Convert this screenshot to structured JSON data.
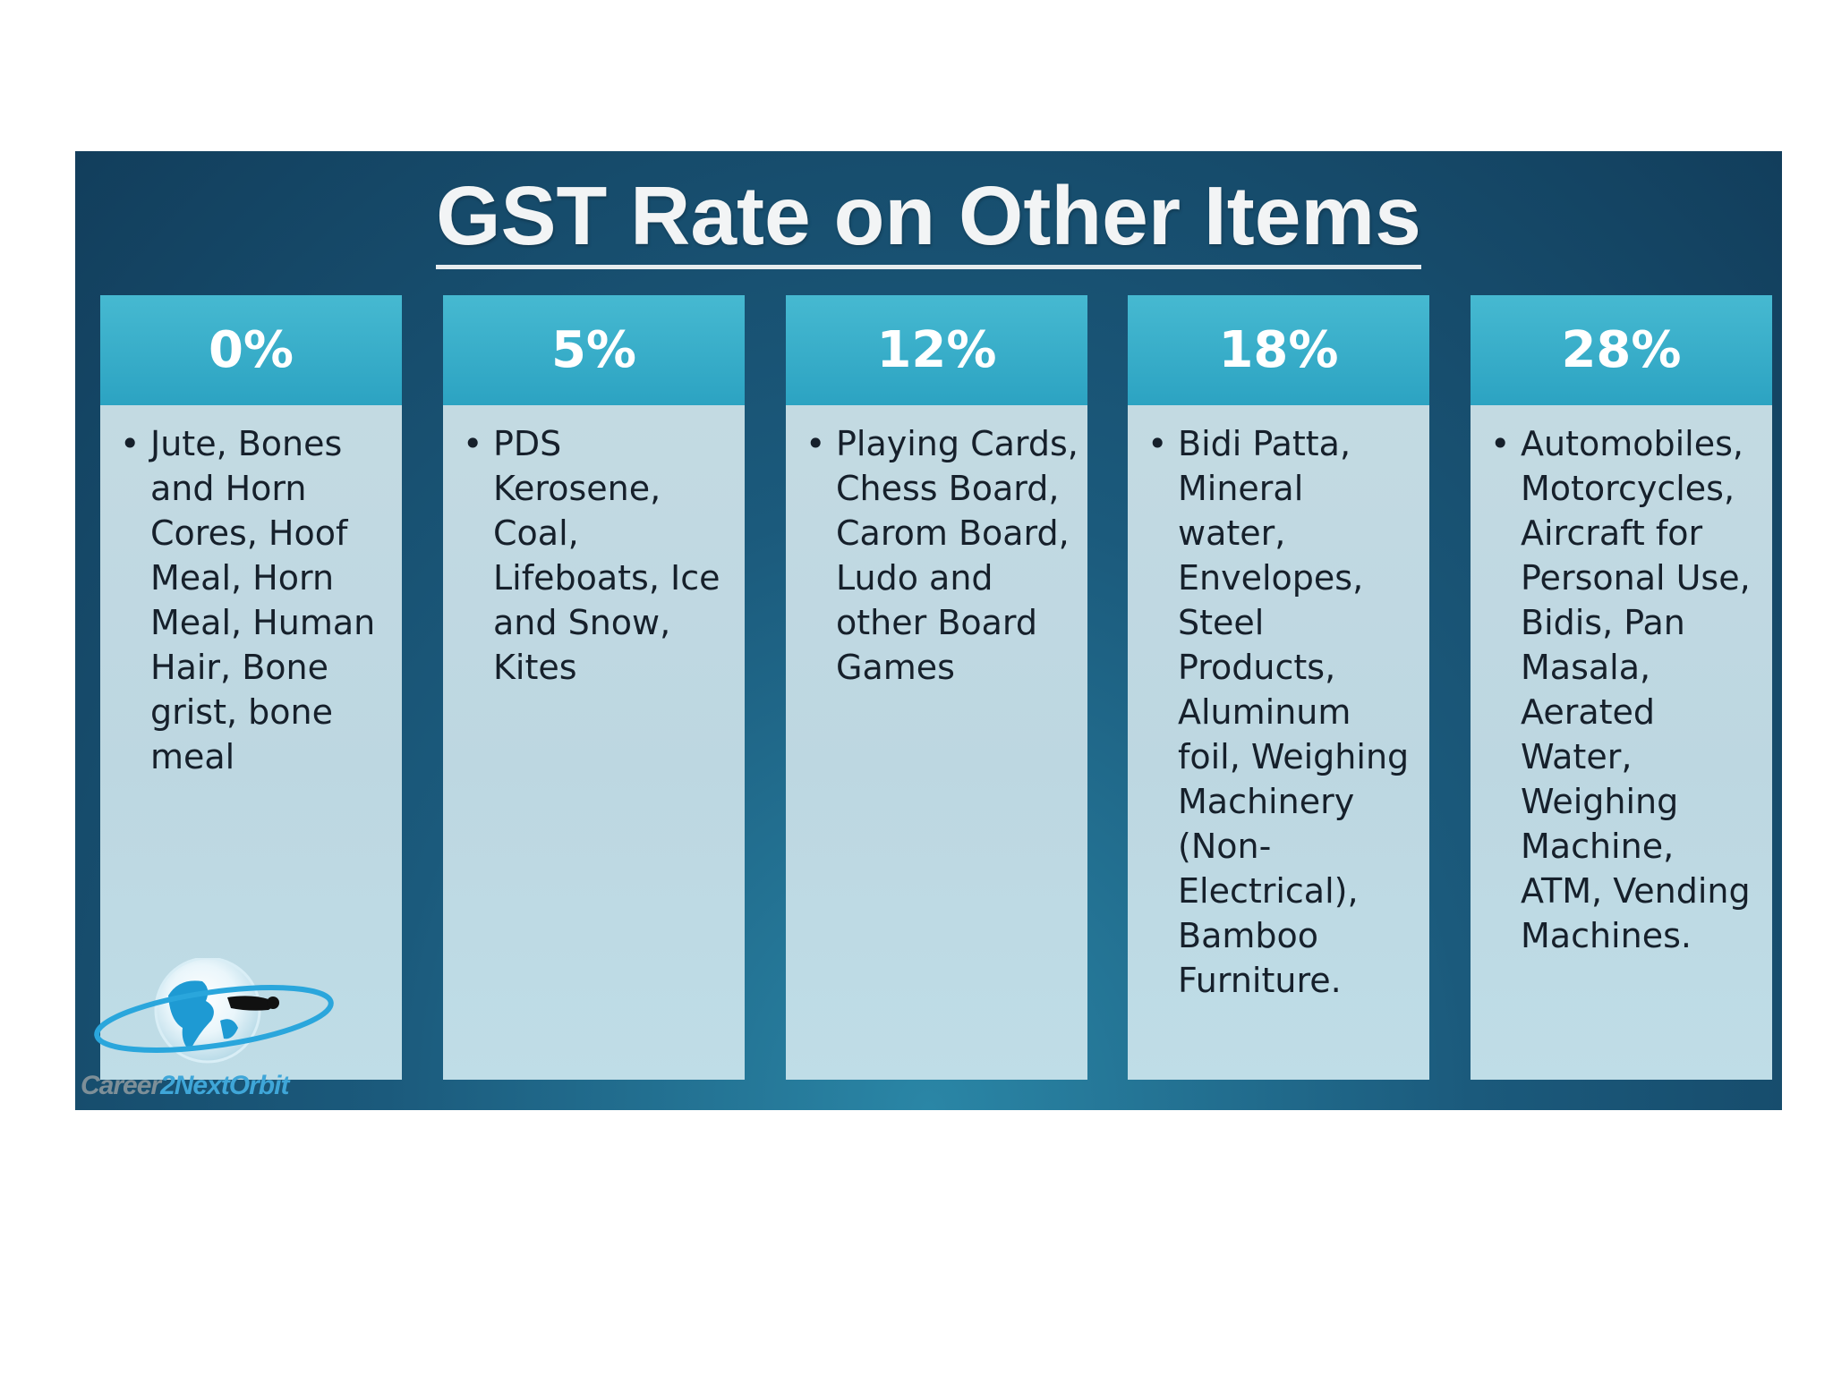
{
  "slide": {
    "title": "GST Rate on Other Items",
    "columns": [
      {
        "rate": "0%",
        "items": [
          "Jute, Bones and Horn Cores, Hoof Meal, Horn Meal, Human Hair, Bone grist, bone meal"
        ]
      },
      {
        "rate": "5%",
        "items": [
          "PDS Kerosene, Coal, Lifeboats, Ice and Snow, Kites"
        ]
      },
      {
        "rate": "12%",
        "items": [
          "Playing Cards, Chess Board, Carom Board, Ludo and other Board Games"
        ]
      },
      {
        "rate": "18%",
        "items": [
          "Bidi Patta, Mineral water, Envelopes, Steel Products, Aluminum foil, Weighing Machinery (Non-Electrical), Bamboo Furniture."
        ]
      },
      {
        "rate": "28%",
        "items": [
          "Automobiles, Motorcycles, Aircraft for Personal Use, Bidis, Pan Masala, Aerated Water, Weighing Machine, ATM, Vending Machines."
        ]
      }
    ],
    "logo": {
      "text_part1": "Career",
      "text_part2": "2NextOrbit",
      "icon": "globe-orbit-logo-icon"
    },
    "colors": {
      "background": "#1b5a7c",
      "column_header": "#2ca3c2",
      "column_body": "#c5dbe3",
      "title_text": "#f2f4f5"
    }
  }
}
